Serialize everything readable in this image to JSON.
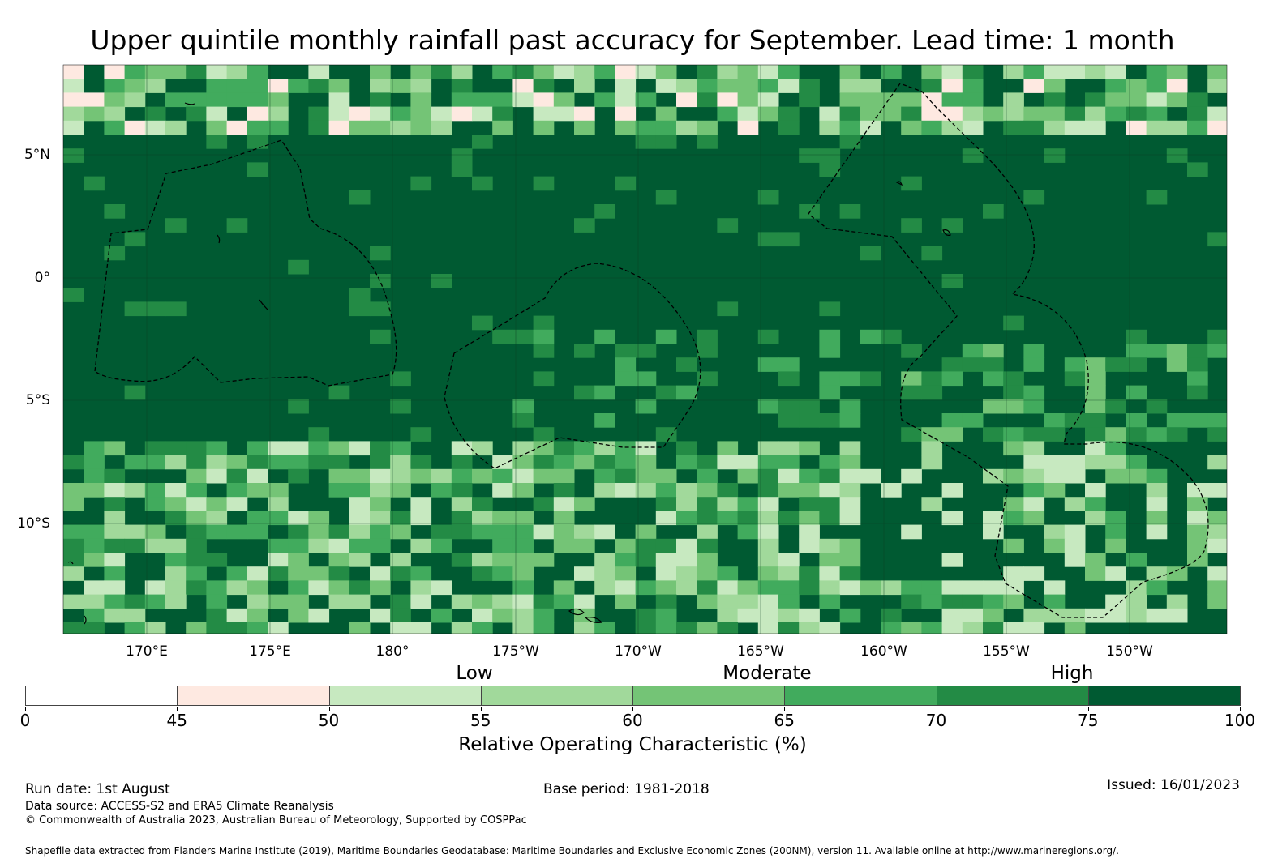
{
  "title": "Upper quintile monthly rainfall past accuracy for September. Lead time: 1 month",
  "map": {
    "lat_labels": [
      "5°N",
      "0°",
      "5°S",
      "10°S"
    ],
    "lon_labels": [
      "170°E",
      "175°E",
      "180°",
      "175°W",
      "170°W",
      "165°W",
      "160°W",
      "155°W",
      "150°W"
    ],
    "lat_range_deg": [
      -14.5,
      8.5
    ],
    "lon_range_deg_east": [
      166.6,
      213.8
    ],
    "grid_resolution_deg": 0.83,
    "gridlines": true,
    "eez_boundaries": "dashed",
    "coastlines": true
  },
  "colorbar": {
    "categories": [
      "Low",
      "Moderate",
      "High"
    ],
    "bins": [
      {
        "from": 0,
        "to": 45,
        "color": "#ffffff"
      },
      {
        "from": 45,
        "to": 50,
        "color": "#fee9e1"
      },
      {
        "from": 50,
        "to": 55,
        "color": "#c7e9c0"
      },
      {
        "from": 55,
        "to": 60,
        "color": "#a1d99b"
      },
      {
        "from": 60,
        "to": 65,
        "color": "#74c476"
      },
      {
        "from": 65,
        "to": 70,
        "color": "#41ab5d"
      },
      {
        "from": 70,
        "to": 75,
        "color": "#238b45"
      },
      {
        "from": 75,
        "to": 100,
        "color": "#005a32"
      }
    ],
    "ticks": [
      "0",
      "45",
      "50",
      "55",
      "60",
      "65",
      "70",
      "75",
      "100"
    ],
    "label": "Relative Operating Characteristic (%)"
  },
  "footer": {
    "run_date": "Run date: 1st August",
    "base_period": "Base period: 1981-2018",
    "issued": "Issued: 16/01/2023",
    "data_source": "Data source: ACCESS-S2 and ERA5 Climate Reanalysis",
    "copyright": "© Commonwealth of Australia 2023, Australian Bureau of Meteorology, Supported by COSPPac",
    "shapefile": "Shapefile data extracted from Flanders Marine Institute (2019), Maritime Boundaries Geodatabase: Maritime Boundaries and Exclusive Economic Zones (200NM), version 11. Available online at http://www.marineregions.org/."
  }
}
